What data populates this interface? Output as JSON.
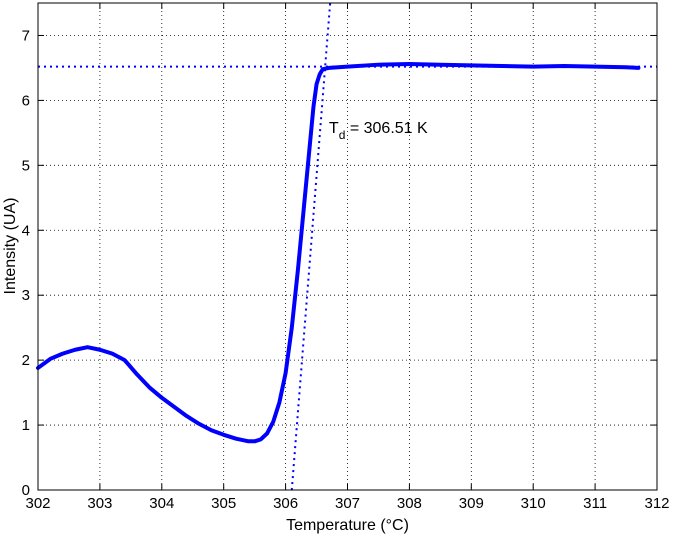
{
  "chart_data": {
    "type": "line",
    "title": "",
    "xlabel": "Temperature (°C)",
    "ylabel": "Intensity (UA)",
    "xlim": [
      302,
      312
    ],
    "ylim": [
      0,
      7.5
    ],
    "xticks": [
      "302",
      "303",
      "304",
      "305",
      "306",
      "307",
      "308",
      "309",
      "310",
      "311",
      "312"
    ],
    "yticks": [
      "0",
      "1",
      "2",
      "3",
      "4",
      "5",
      "6",
      "7"
    ],
    "grid": true,
    "annotation": {
      "main": "T",
      "sub": "d",
      "rest": " = 306.51 K",
      "x": 306.7,
      "y": 5.5
    },
    "reference_lines": {
      "horizontal_y": 6.52,
      "tangent": [
        [
          306.1,
          -0.5
        ],
        [
          306.72,
          8.5
        ]
      ]
    },
    "series": [
      {
        "color": "#0000ff",
        "x": [
          302.0,
          302.2,
          302.4,
          302.6,
          302.8,
          303.0,
          303.2,
          303.4,
          303.6,
          303.8,
          304.0,
          304.2,
          304.4,
          304.6,
          304.8,
          305.0,
          305.2,
          305.4,
          305.5,
          305.6,
          305.7,
          305.8,
          305.9,
          306.0,
          306.1,
          306.2,
          306.3,
          306.4,
          306.45,
          306.5,
          306.55,
          306.6,
          306.7,
          307.0,
          307.5,
          308.0,
          308.5,
          309.0,
          309.5,
          310.0,
          310.5,
          311.0,
          311.5,
          311.7
        ],
        "y": [
          1.88,
          2.02,
          2.1,
          2.16,
          2.2,
          2.16,
          2.1,
          2.0,
          1.78,
          1.58,
          1.42,
          1.28,
          1.14,
          1.02,
          0.92,
          0.85,
          0.79,
          0.75,
          0.75,
          0.78,
          0.87,
          1.05,
          1.35,
          1.8,
          2.5,
          3.4,
          4.4,
          5.4,
          5.9,
          6.25,
          6.4,
          6.48,
          6.5,
          6.52,
          6.55,
          6.56,
          6.55,
          6.54,
          6.53,
          6.52,
          6.53,
          6.52,
          6.51,
          6.5
        ]
      }
    ]
  }
}
